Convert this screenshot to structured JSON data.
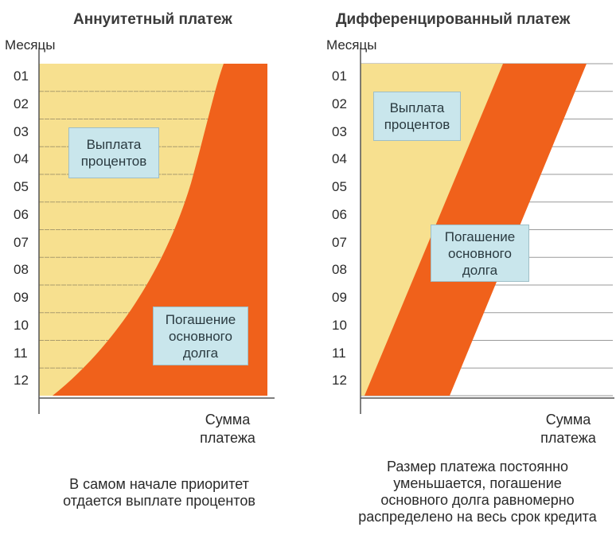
{
  "left": {
    "title": "Аннуитетный платеж",
    "months_label": "Месяцы",
    "months": [
      "01",
      "02",
      "03",
      "04",
      "05",
      "06",
      "07",
      "08",
      "09",
      "10",
      "11",
      "12"
    ],
    "interest_label": [
      "Выплата",
      "процентов"
    ],
    "principal_label": [
      "Погашение",
      "основного",
      "долга"
    ],
    "x_axis_label": [
      "Сумма",
      "платежа"
    ],
    "caption": [
      "В самом начале приоритет",
      "отдается выплате процентов"
    ]
  },
  "right": {
    "title": "Дифференцированный платеж",
    "months_label": "Месяцы",
    "months": [
      "01",
      "02",
      "03",
      "04",
      "05",
      "06",
      "07",
      "08",
      "09",
      "10",
      "11",
      "12"
    ],
    "interest_label": [
      "Выплата",
      "процентов"
    ],
    "principal_label": [
      "Погашение",
      "основного",
      "долга"
    ],
    "x_axis_label": [
      "Сумма",
      "платежа"
    ],
    "caption": [
      "Размер платежа постоянно",
      "уменьшается, погашение",
      "основного долга равномерно",
      "распределено на весь срок кредита"
    ]
  },
  "colors": {
    "interest": "#f7e08f",
    "principal": "#f0611b",
    "callout": "#c9e6ec",
    "grid": "#8a8060",
    "axis": "#555555"
  }
}
